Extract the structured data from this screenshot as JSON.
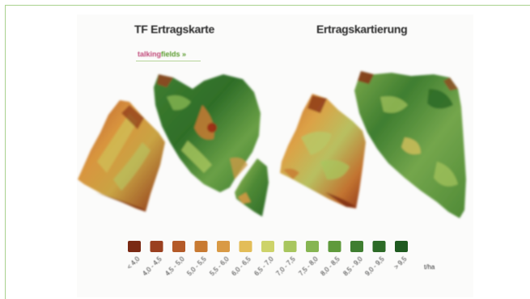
{
  "titles": {
    "left": "TF Ertragskarte",
    "right": "Ertragskartierung"
  },
  "logo": {
    "part1": "talking",
    "part2": "fields",
    "suffix": "»"
  },
  "colors": {
    "frame": "#a9d18e",
    "legend": [
      "#7a2a14",
      "#9a4020",
      "#b45a28",
      "#c87a32",
      "#d99a45",
      "#e3bd58",
      "#cdd36a",
      "#a8c65e",
      "#86b552",
      "#5f9a3c",
      "#3f7e30",
      "#2c6a26",
      "#1f5a20"
    ]
  },
  "legend": {
    "labels": [
      "< 4,0",
      "4,0 - 4,5",
      "4,5 - 5,0",
      "5,0 - 5,5",
      "5,5 - 6,0",
      "6,0 - 6,5",
      "6,5 - 7,0",
      "7,0 - 7,5",
      "7,5 - 8,0",
      "8,0 - 8,5",
      "8,5 - 9,0",
      "9,0 - 9,5",
      "> 9,5"
    ],
    "unit": "t/ha"
  }
}
